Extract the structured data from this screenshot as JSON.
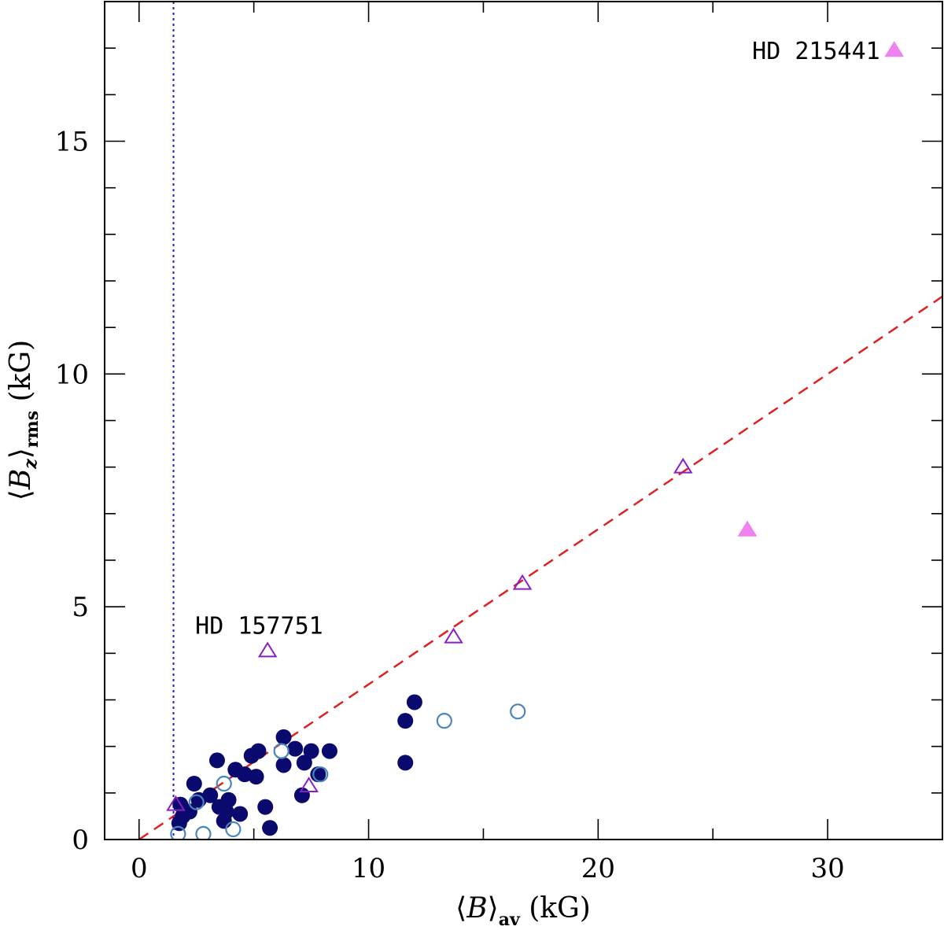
{
  "chart_data": {
    "type": "scatter",
    "title": "",
    "xlabel": {
      "prefix": "⟨",
      "var": "B",
      "suffix": "⟩",
      "subscript": "av",
      "unit": " (kG)"
    },
    "ylabel": {
      "prefix": "⟨",
      "var": "B",
      "var_sub": "z",
      "suffix": "⟩",
      "subscript": "rms",
      "unit": " (kG)"
    },
    "xlim": [
      -1.5,
      35
    ],
    "ylim": [
      0,
      18
    ],
    "x_ticks": [
      0,
      10,
      20,
      30
    ],
    "y_ticks": [
      5,
      10,
      15
    ],
    "y_zero_label": "0",
    "x_minor_step": 5,
    "y_minor_step": 1,
    "reference_lines": [
      {
        "name": "equality-line",
        "kind": "dashed",
        "color": "#dd2222",
        "slope": 0.3333,
        "intercept": 0
      },
      {
        "name": "detection-limit-line",
        "kind": "dotted",
        "color": "#1f1fbf",
        "x": 1.5
      }
    ],
    "series": [
      {
        "name": "filled-circles",
        "marker": "circle-filled",
        "color": "#0a0a6e",
        "points": [
          [
            1.8,
            0.75
          ],
          [
            1.75,
            0.35
          ],
          [
            1.9,
            0.5
          ],
          [
            2.2,
            0.6
          ],
          [
            2.4,
            1.2
          ],
          [
            2.6,
            0.85
          ],
          [
            3.1,
            0.95
          ],
          [
            3.4,
            1.7
          ],
          [
            3.5,
            0.7
          ],
          [
            3.7,
            0.4
          ],
          [
            3.9,
            0.85
          ],
          [
            3.8,
            0.6
          ],
          [
            4.2,
            1.5
          ],
          [
            4.4,
            0.55
          ],
          [
            4.6,
            1.4
          ],
          [
            4.9,
            1.8
          ],
          [
            5.1,
            1.35
          ],
          [
            5.2,
            1.9
          ],
          [
            5.5,
            0.7
          ],
          [
            5.7,
            0.25
          ],
          [
            6.3,
            2.2
          ],
          [
            6.3,
            1.6
          ],
          [
            6.8,
            1.95
          ],
          [
            7.1,
            0.95
          ],
          [
            7.2,
            1.65
          ],
          [
            7.5,
            1.9
          ],
          [
            7.8,
            1.4
          ],
          [
            8.3,
            1.9
          ],
          [
            11.6,
            2.55
          ],
          [
            11.6,
            1.65
          ],
          [
            12.0,
            2.95
          ]
        ]
      },
      {
        "name": "open-circles",
        "marker": "circle-open",
        "color": "#4a86b8",
        "points": [
          [
            1.7,
            0.12
          ],
          [
            2.5,
            0.8
          ],
          [
            2.8,
            0.12
          ],
          [
            3.7,
            1.2
          ],
          [
            4.1,
            0.22
          ],
          [
            6.2,
            1.9
          ],
          [
            7.9,
            1.4
          ],
          [
            13.3,
            2.55
          ],
          [
            16.5,
            2.75
          ]
        ]
      },
      {
        "name": "open-triangles",
        "marker": "triangle-open",
        "color": "#8a1fc0",
        "points": [
          [
            1.6,
            0.75
          ],
          [
            5.6,
            4.05
          ],
          [
            7.4,
            1.15
          ],
          [
            13.7,
            4.35
          ],
          [
            16.7,
            5.5
          ],
          [
            23.7,
            8.0
          ]
        ]
      },
      {
        "name": "filled-triangles",
        "marker": "triangle-filled",
        "color": "#ee82ee",
        "points": [
          [
            26.5,
            6.65
          ],
          [
            32.9,
            16.95
          ]
        ]
      }
    ],
    "annotations": [
      {
        "name": "annotation-hd-157751",
        "text": "HD 157751",
        "x": 5.6,
        "y": 4.05,
        "anchor": "above"
      },
      {
        "name": "annotation-hd-215441",
        "text": "HD 215441",
        "x": 32.9,
        "y": 16.95,
        "anchor": "left"
      }
    ]
  }
}
